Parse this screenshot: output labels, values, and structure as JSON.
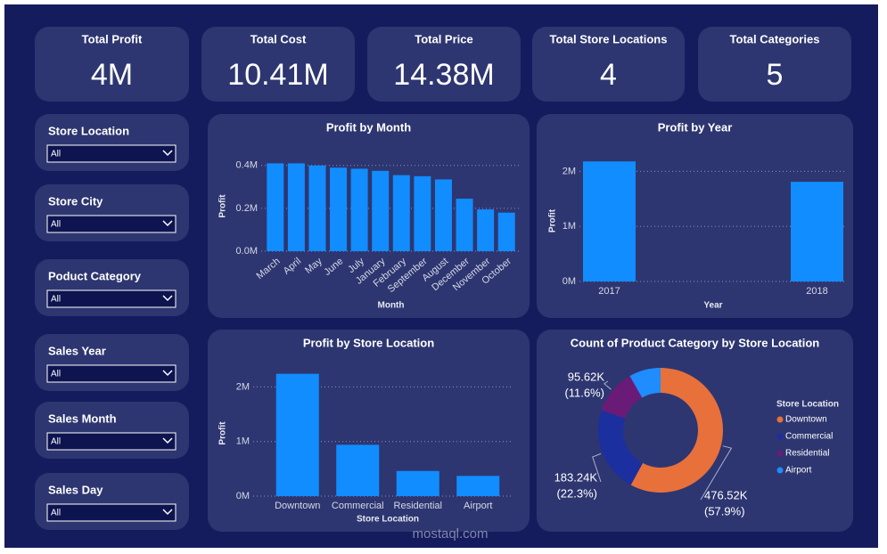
{
  "kpis": [
    {
      "title": "Total Profit",
      "value": "4M"
    },
    {
      "title": "Total Cost",
      "value": "10.41M"
    },
    {
      "title": "Total Price",
      "value": "14.38M"
    },
    {
      "title": "Total Store Locations",
      "value": "4"
    },
    {
      "title": "Total Categories",
      "value": "5"
    }
  ],
  "filters": [
    {
      "label": "Store Location",
      "selected": "All"
    },
    {
      "label": "Store City",
      "selected": "All"
    },
    {
      "label": "Poduct Category",
      "selected": "All"
    },
    {
      "label": "Sales Year",
      "selected": "All"
    },
    {
      "label": "Sales Month",
      "selected": "All"
    },
    {
      "label": "Sales Day",
      "selected": "All"
    }
  ],
  "watermark": "mostaql.com",
  "chart_data": [
    {
      "type": "bar",
      "title": "Profit by Month",
      "x_label": "Month",
      "y_label": "Profit",
      "color": "#118dff",
      "grid": true,
      "categories": [
        "March",
        "April",
        "May",
        "June",
        "July",
        "January",
        "February",
        "September",
        "August",
        "December",
        "November",
        "October"
      ],
      "values": [
        410000,
        410000,
        400000,
        390000,
        385000,
        375000,
        355000,
        350000,
        335000,
        245000,
        195000,
        180000
      ],
      "ylim": [
        0,
        420000
      ],
      "yticks": [
        {
          "value": 0,
          "label": "0.0M"
        },
        {
          "value": 200000,
          "label": "0.2M"
        },
        {
          "value": 400000,
          "label": "0.4M"
        }
      ]
    },
    {
      "type": "bar",
      "title": "Profit by Year",
      "x_label": "Year",
      "y_label": "Profit",
      "color": "#118dff",
      "grid": true,
      "categories": [
        "2017",
        "2018"
      ],
      "values": [
        2180000,
        1810000
      ],
      "ylim": [
        0,
        2200000
      ],
      "yticks": [
        {
          "value": 0,
          "label": "0M"
        },
        {
          "value": 1000000,
          "label": "1M"
        },
        {
          "value": 2000000,
          "label": "2M"
        }
      ]
    },
    {
      "type": "bar",
      "title": "Profit by Store Location",
      "x_label": "Store Location",
      "y_label": "Profit",
      "color": "#118dff",
      "grid": true,
      "categories": [
        "Downtown",
        "Commercial",
        "Residential",
        "Airport"
      ],
      "values": [
        2240000,
        940000,
        460000,
        370000
      ],
      "ylim": [
        0,
        2300000
      ],
      "yticks": [
        {
          "value": 0,
          "label": "0M"
        },
        {
          "value": 1000000,
          "label": "1M"
        },
        {
          "value": 2000000,
          "label": "2M"
        }
      ]
    },
    {
      "type": "donut",
      "title": "Count of Product Category by Store Location",
      "legend_title": "Store Location",
      "legend": "right",
      "categories": [
        "Downtown",
        "Commercial",
        "Residential",
        "Airport"
      ],
      "colors": [
        "#e8703a",
        "#1c2f9e",
        "#6a1b78",
        "#1f8cff"
      ],
      "values": [
        476520,
        183240,
        95620,
        67600
      ],
      "value_labels": [
        "476.52K",
        "183.24K",
        "95.62K",
        null
      ],
      "percent_labels": [
        "(57.9%)",
        "(22.3%)",
        "(11.6%)",
        null
      ]
    }
  ]
}
